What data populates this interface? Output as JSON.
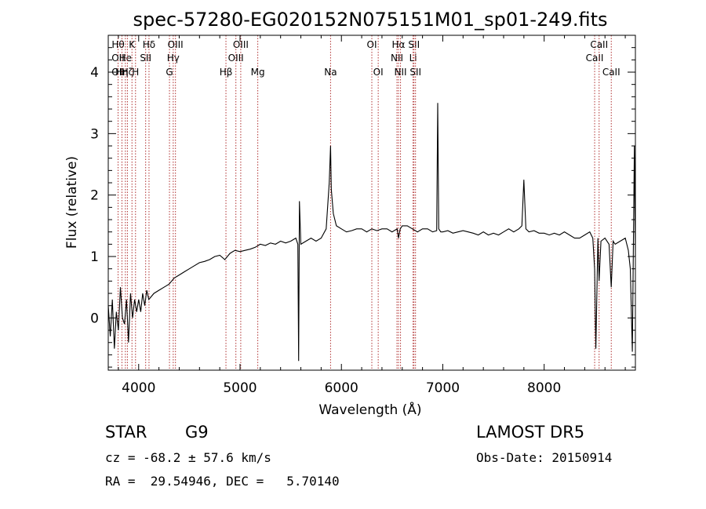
{
  "chart_data": {
    "type": "line",
    "title": "spec-57280-EG020152N075151M01_sp01-249.fits",
    "xlabel": "Wavelength (Å)",
    "ylabel": "Flux (relative)",
    "xlim": [
      3700,
      8900
    ],
    "ylim": [
      -0.85,
      4.6
    ],
    "x_ticks": [
      4000,
      5000,
      6000,
      7000,
      8000
    ],
    "y_ticks": [
      0,
      1,
      2,
      3,
      4
    ],
    "grid": false,
    "line_color": "#000000",
    "marker_color": "#b03030",
    "series": [
      {
        "x": [
          3700,
          3720,
          3740,
          3760,
          3780,
          3800,
          3820,
          3840,
          3860,
          3880,
          3900,
          3920,
          3940,
          3960,
          3980,
          4000,
          4020,
          4040,
          4060,
          4080,
          4100,
          4150,
          4200,
          4250,
          4300,
          4350,
          4400,
          4450,
          4500,
          4550,
          4600,
          4650,
          4700,
          4750,
          4800,
          4850,
          4900,
          4950,
          5000,
          5050,
          5100,
          5150,
          5200,
          5250,
          5300,
          5350,
          5400,
          5450,
          5500,
          5550,
          5570,
          5578,
          5586,
          5600,
          5650,
          5700,
          5750,
          5800,
          5850,
          5880,
          5893,
          5900,
          5920,
          5950,
          6000,
          6050,
          6100,
          6150,
          6200,
          6250,
          6300,
          6350,
          6400,
          6450,
          6500,
          6550,
          6563,
          6580,
          6600,
          6650,
          6700,
          6750,
          6800,
          6850,
          6900,
          6940,
          6950,
          6960,
          6980,
          7000,
          7050,
          7100,
          7150,
          7200,
          7250,
          7300,
          7350,
          7400,
          7450,
          7500,
          7550,
          7600,
          7650,
          7700,
          7750,
          7780,
          7800,
          7820,
          7850,
          7900,
          7950,
          8000,
          8050,
          8100,
          8150,
          8200,
          8250,
          8300,
          8350,
          8400,
          8450,
          8480,
          8498,
          8510,
          8530,
          8542,
          8560,
          8600,
          8640,
          8662,
          8680,
          8700,
          8750,
          8800,
          8830,
          8850,
          8870,
          8890,
          8900
        ],
        "y": [
          0.2,
          -0.3,
          0.3,
          -0.5,
          0.1,
          -0.2,
          0.5,
          0.0,
          -0.1,
          0.3,
          -0.4,
          0.4,
          0.0,
          0.3,
          0.1,
          0.3,
          0.1,
          0.4,
          0.2,
          0.45,
          0.3,
          0.4,
          0.45,
          0.5,
          0.55,
          0.65,
          0.7,
          0.75,
          0.8,
          0.85,
          0.9,
          0.92,
          0.95,
          1.0,
          1.02,
          0.95,
          1.05,
          1.1,
          1.08,
          1.1,
          1.12,
          1.15,
          1.2,
          1.18,
          1.22,
          1.2,
          1.25,
          1.22,
          1.25,
          1.3,
          1.2,
          -0.7,
          1.9,
          1.2,
          1.25,
          1.3,
          1.25,
          1.3,
          1.45,
          2.2,
          2.8,
          2.1,
          1.7,
          1.5,
          1.45,
          1.4,
          1.42,
          1.45,
          1.45,
          1.4,
          1.45,
          1.42,
          1.45,
          1.45,
          1.4,
          1.45,
          1.3,
          1.45,
          1.5,
          1.5,
          1.45,
          1.4,
          1.45,
          1.45,
          1.4,
          1.42,
          3.5,
          1.45,
          1.4,
          1.4,
          1.42,
          1.38,
          1.4,
          1.42,
          1.4,
          1.38,
          1.35,
          1.4,
          1.35,
          1.38,
          1.35,
          1.4,
          1.45,
          1.4,
          1.45,
          1.5,
          2.25,
          1.45,
          1.4,
          1.42,
          1.38,
          1.38,
          1.35,
          1.38,
          1.35,
          1.4,
          1.35,
          1.3,
          1.3,
          1.35,
          1.4,
          1.3,
          0.8,
          -0.5,
          1.3,
          0.6,
          1.25,
          1.3,
          1.2,
          0.5,
          1.25,
          1.2,
          1.25,
          1.3,
          1.1,
          0.8,
          -0.55,
          2.8,
          1.0
        ]
      }
    ],
    "line_markers": [
      {
        "x": 3797,
        "top": "Hθ",
        "mid": "OII",
        "bot": "OII"
      },
      {
        "x": 3835,
        "top": "",
        "mid": "",
        "bot": "Hη"
      },
      {
        "x": 3869,
        "top": "",
        "mid": "He",
        "bot": ""
      },
      {
        "x": 3889,
        "top": "",
        "mid": "",
        "bot": "Hζ"
      },
      {
        "x": 3934,
        "top": "K",
        "mid": "",
        "bot": ""
      },
      {
        "x": 3969,
        "top": "",
        "mid": "",
        "bot": "H"
      },
      {
        "x": 4069,
        "top": "",
        "mid": "SII",
        "bot": ""
      },
      {
        "x": 4102,
        "top": "Hδ",
        "mid": "",
        "bot": ""
      },
      {
        "x": 4304,
        "top": "",
        "mid": "",
        "bot": "G"
      },
      {
        "x": 4341,
        "top": "",
        "mid": "Hγ",
        "bot": ""
      },
      {
        "x": 4363,
        "top": "OIII",
        "mid": "",
        "bot": ""
      },
      {
        "x": 4861,
        "top": "",
        "mid": "",
        "bot": "Hβ"
      },
      {
        "x": 4959,
        "top": "",
        "mid": "OIII",
        "bot": ""
      },
      {
        "x": 5007,
        "top": "OIII",
        "mid": "",
        "bot": ""
      },
      {
        "x": 5175,
        "top": "",
        "mid": "",
        "bot": "Mg"
      },
      {
        "x": 5893,
        "top": "",
        "mid": "",
        "bot": "Na"
      },
      {
        "x": 6300,
        "top": "OI",
        "mid": "",
        "bot": ""
      },
      {
        "x": 6363,
        "top": "",
        "mid": "",
        "bot": "OI"
      },
      {
        "x": 6548,
        "top": "",
        "mid": "NII",
        "bot": ""
      },
      {
        "x": 6563,
        "top": "Hα",
        "mid": "",
        "bot": ""
      },
      {
        "x": 6583,
        "top": "",
        "mid": "",
        "bot": "NII"
      },
      {
        "x": 6707,
        "top": "",
        "mid": "Li",
        "bot": ""
      },
      {
        "x": 6716,
        "top": "SII",
        "mid": "",
        "bot": ""
      },
      {
        "x": 6731,
        "top": "",
        "mid": "",
        "bot": "SII"
      },
      {
        "x": 8498,
        "top": "",
        "mid": "CaII",
        "bot": ""
      },
      {
        "x": 8542,
        "top": "CaII",
        "mid": "",
        "bot": ""
      },
      {
        "x": 8662,
        "top": "",
        "mid": "",
        "bot": "CaII"
      }
    ]
  },
  "footer": {
    "object_class": "STAR",
    "subclass": "G9",
    "survey": "LAMOST DR5",
    "cz_line": "cz = -68.2 ± 57.6 km/s",
    "obs_date_line": "Obs-Date: 20150914",
    "coords_line": "RA =  29.54946, DEC =   5.70140"
  }
}
